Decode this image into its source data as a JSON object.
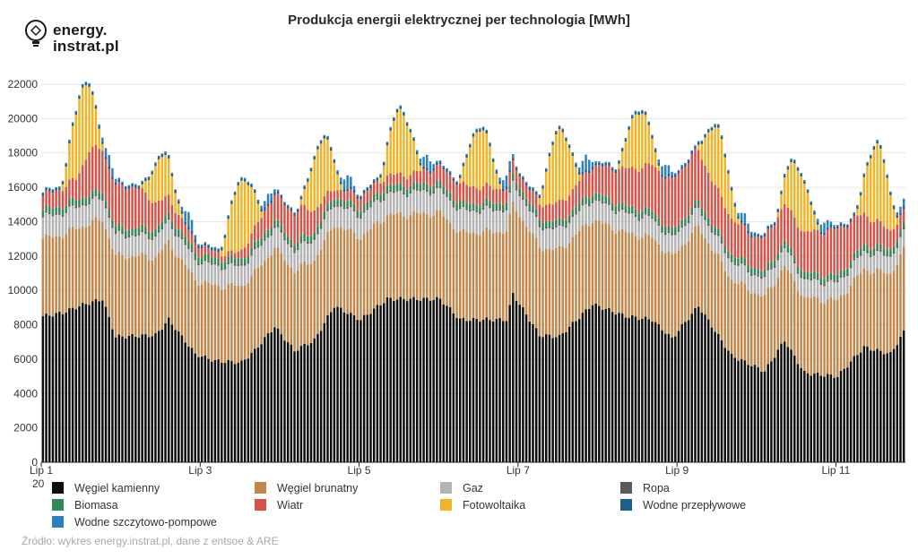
{
  "logo": {
    "line1": "energy.",
    "line2": "instrat.pl"
  },
  "chart_data": {
    "type": "bar",
    "stacked": true,
    "title": "Produkcja energii elektrycznej per technologia [MWh]",
    "ylabel": "",
    "xlabel": "",
    "ylim": [
      0,
      22000
    ],
    "yticks": [
      0,
      2000,
      4000,
      6000,
      8000,
      10000,
      12000,
      14000,
      16000,
      18000,
      20000,
      22000
    ],
    "xtick_labels": [
      "Lip 1",
      "Lip 3",
      "Lip 5",
      "Lip 7",
      "Lip 9",
      "Lip 11"
    ],
    "xtick_sublabel": "20",
    "xtick_hours": [
      0,
      48,
      96,
      144,
      192,
      240
    ],
    "grid": true,
    "legend_position": "bottom",
    "hours": 261,
    "series": [
      {
        "name": "Węgiel kamienny",
        "color": "#0d0d0d",
        "daily_profile": [
          [
            0,
            8500
          ],
          [
            6,
            8700
          ],
          [
            11,
            9100
          ],
          [
            18,
            9500
          ],
          [
            22,
            7300
          ],
          [
            34,
            7400
          ],
          [
            38,
            8300
          ],
          [
            46,
            6300
          ],
          [
            52,
            5900
          ],
          [
            60,
            5800
          ],
          [
            64,
            6500
          ],
          [
            70,
            7900
          ],
          [
            76,
            6500
          ],
          [
            82,
            7100
          ],
          [
            88,
            9100
          ],
          [
            96,
            8300
          ],
          [
            104,
            9500
          ],
          [
            120,
            9500
          ],
          [
            126,
            8300
          ],
          [
            140,
            8300
          ],
          [
            142,
            9800
          ],
          [
            150,
            7400
          ],
          [
            156,
            7300
          ],
          [
            166,
            9200
          ],
          [
            176,
            8500
          ],
          [
            184,
            8300
          ],
          [
            190,
            7200
          ],
          [
            198,
            9100
          ],
          [
            208,
            6200
          ],
          [
            218,
            5300
          ],
          [
            224,
            7100
          ],
          [
            230,
            5200
          ],
          [
            240,
            5000
          ],
          [
            248,
            6700
          ],
          [
            256,
            6300
          ],
          [
            262,
            8200
          ],
          [
            271,
            10100
          ]
        ]
      },
      {
        "name": "Węgiel brunatny",
        "color": "#c2874a",
        "daily_profile": [
          [
            0,
            4500
          ],
          [
            24,
            4700
          ],
          [
            48,
            4300
          ],
          [
            72,
            4600
          ],
          [
            96,
            4800
          ],
          [
            120,
            5000
          ],
          [
            144,
            5200
          ],
          [
            168,
            4900
          ],
          [
            192,
            4700
          ],
          [
            216,
            4300
          ],
          [
            240,
            4400
          ],
          [
            271,
            4900
          ]
        ]
      },
      {
        "name": "Gaz",
        "color": "#b4b4b4",
        "daily_profile": [
          [
            0,
            1250
          ],
          [
            60,
            1150
          ],
          [
            120,
            1300
          ],
          [
            200,
            1050
          ],
          [
            271,
            1000
          ]
        ]
      },
      {
        "name": "Ropa",
        "color": "#5a5a5a",
        "daily_profile": [
          [
            0,
            110
          ],
          [
            271,
            110
          ]
        ]
      },
      {
        "name": "Biomasa",
        "color": "#2e8b57",
        "daily_profile": [
          [
            0,
            330
          ],
          [
            271,
            310
          ]
        ]
      },
      {
        "name": "Wiatr",
        "color": "#d4544a",
        "daily_profile": [
          [
            0,
            800
          ],
          [
            10,
            1200
          ],
          [
            14,
            2600
          ],
          [
            20,
            2400
          ],
          [
            28,
            2400
          ],
          [
            38,
            1000
          ],
          [
            50,
            400
          ],
          [
            58,
            300
          ],
          [
            68,
            1400
          ],
          [
            78,
            1800
          ],
          [
            88,
            500
          ],
          [
            96,
            700
          ],
          [
            110,
            600
          ],
          [
            124,
            1100
          ],
          [
            144,
            700
          ],
          [
            160,
            1200
          ],
          [
            172,
            1900
          ],
          [
            184,
            2700
          ],
          [
            196,
            3100
          ],
          [
            206,
            2200
          ],
          [
            214,
            1800
          ],
          [
            226,
            2200
          ],
          [
            240,
            2700
          ],
          [
            250,
            1600
          ],
          [
            262,
            600
          ],
          [
            271,
            600
          ]
        ]
      },
      {
        "name": "Fotowoltaika",
        "color": "#f0b426",
        "solar_peak_by_day": [
          4500,
          2500,
          4000,
          3500,
          3700,
          3400,
          4100,
          3300,
          3500,
          3300,
          4400,
          3500
        ]
      },
      {
        "name": "Wodne przepływowe",
        "color": "#1d5e8c",
        "daily_profile": [
          [
            0,
            150
          ],
          [
            271,
            150
          ]
        ]
      },
      {
        "name": "Wodne szczytowo-pompowe",
        "color": "#2b81bd",
        "evening_peak_by_day": [
          600,
          800,
          500,
          700,
          700,
          600,
          800,
          600,
          500,
          500,
          400,
          600
        ]
      }
    ]
  },
  "source": "Źródło: wykres energy.instrat.pl, dane z entsoe & ARE"
}
